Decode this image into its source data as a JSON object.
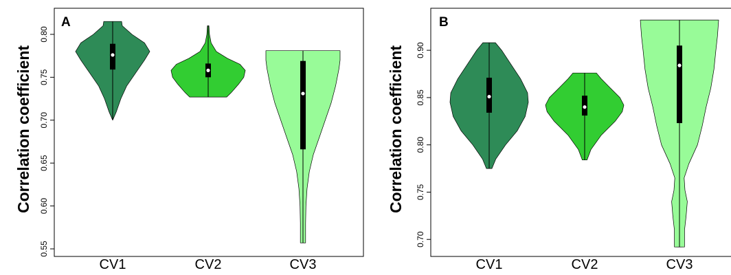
{
  "chart_data": [
    {
      "type": "violin",
      "panel_label": "A",
      "ylabel": "Correlation coefficient",
      "ylim": [
        0.55,
        0.82
      ],
      "yticks": [
        0.55,
        0.6,
        0.65,
        0.7,
        0.75,
        0.8
      ],
      "ytick_labels": [
        "0.55",
        "0.60",
        "0.65",
        "0.70",
        "0.75",
        "0.80"
      ],
      "categories": [
        "CV1",
        "CV2",
        "CV3"
      ],
      "colors": [
        "#2e8b57",
        "#32cd32",
        "#98fb98"
      ],
      "violins": [
        {
          "category": "CV1",
          "min": 0.7,
          "max": 0.815,
          "q1": 0.759,
          "q3": 0.789,
          "median": 0.776,
          "profile": [
            [
              0.7,
              0.0
            ],
            [
              0.71,
              0.1
            ],
            [
              0.725,
              0.22
            ],
            [
              0.74,
              0.38
            ],
            [
              0.755,
              0.62
            ],
            [
              0.77,
              0.86
            ],
            [
              0.78,
              1.0
            ],
            [
              0.79,
              0.86
            ],
            [
              0.8,
              0.52
            ],
            [
              0.81,
              0.26
            ],
            [
              0.815,
              0.24
            ]
          ]
        },
        {
          "category": "CV2",
          "min": 0.727,
          "max": 0.81,
          "q1": 0.75,
          "q3": 0.766,
          "median": 0.758,
          "profile": [
            [
              0.727,
              0.5
            ],
            [
              0.732,
              0.62
            ],
            [
              0.742,
              0.82
            ],
            [
              0.75,
              0.96
            ],
            [
              0.758,
              1.0
            ],
            [
              0.765,
              0.86
            ],
            [
              0.772,
              0.52
            ],
            [
              0.78,
              0.22
            ],
            [
              0.79,
              0.08
            ],
            [
              0.8,
              0.035
            ],
            [
              0.81,
              0.02
            ]
          ]
        },
        {
          "category": "CV3",
          "min": 0.557,
          "max": 0.781,
          "q1": 0.666,
          "q3": 0.769,
          "median": 0.731,
          "profile": [
            [
              0.557,
              0.07
            ],
            [
              0.58,
              0.07
            ],
            [
              0.6,
              0.08
            ],
            [
              0.62,
              0.11
            ],
            [
              0.64,
              0.17
            ],
            [
              0.66,
              0.28
            ],
            [
              0.68,
              0.44
            ],
            [
              0.7,
              0.6
            ],
            [
              0.72,
              0.76
            ],
            [
              0.74,
              0.88
            ],
            [
              0.76,
              0.97
            ],
            [
              0.77,
              1.0
            ],
            [
              0.781,
              1.0
            ]
          ]
        }
      ]
    },
    {
      "type": "violin",
      "panel_label": "B",
      "ylabel": "Correlation coefficient",
      "ylim": [
        0.69,
        0.935
      ],
      "yticks": [
        0.7,
        0.75,
        0.8,
        0.85,
        0.9
      ],
      "ytick_labels": [
        "0.70",
        "0.75",
        "0.80",
        "0.85",
        "0.90"
      ],
      "categories": [
        "CV1",
        "CV2",
        "CV3"
      ],
      "colors": [
        "#2e8b57",
        "#32cd32",
        "#98fb98"
      ],
      "violins": [
        {
          "category": "CV1",
          "min": 0.775,
          "max": 0.908,
          "q1": 0.834,
          "q3": 0.871,
          "median": 0.851,
          "profile": [
            [
              0.775,
              0.07
            ],
            [
              0.785,
              0.17
            ],
            [
              0.8,
              0.42
            ],
            [
              0.815,
              0.72
            ],
            [
              0.83,
              0.92
            ],
            [
              0.845,
              1.0
            ],
            [
              0.855,
              0.98
            ],
            [
              0.87,
              0.8
            ],
            [
              0.885,
              0.56
            ],
            [
              0.9,
              0.32
            ],
            [
              0.908,
              0.16
            ]
          ]
        },
        {
          "category": "CV2",
          "min": 0.784,
          "max": 0.876,
          "q1": 0.831,
          "q3": 0.852,
          "median": 0.84,
          "profile": [
            [
              0.784,
              0.06
            ],
            [
              0.795,
              0.16
            ],
            [
              0.81,
              0.42
            ],
            [
              0.825,
              0.78
            ],
            [
              0.835,
              0.96
            ],
            [
              0.842,
              1.0
            ],
            [
              0.85,
              0.9
            ],
            [
              0.86,
              0.66
            ],
            [
              0.87,
              0.42
            ],
            [
              0.876,
              0.3
            ]
          ]
        },
        {
          "category": "CV3",
          "min": 0.692,
          "max": 0.932,
          "q1": 0.823,
          "q3": 0.905,
          "median": 0.884,
          "profile": [
            [
              0.692,
              0.13
            ],
            [
              0.71,
              0.13
            ],
            [
              0.725,
              0.17
            ],
            [
              0.74,
              0.2
            ],
            [
              0.752,
              0.14
            ],
            [
              0.765,
              0.12
            ],
            [
              0.78,
              0.24
            ],
            [
              0.8,
              0.46
            ],
            [
              0.82,
              0.58
            ],
            [
              0.84,
              0.68
            ],
            [
              0.86,
              0.8
            ],
            [
              0.88,
              0.88
            ],
            [
              0.9,
              0.93
            ],
            [
              0.915,
              0.97
            ],
            [
              0.932,
              1.0
            ]
          ]
        }
      ]
    }
  ]
}
